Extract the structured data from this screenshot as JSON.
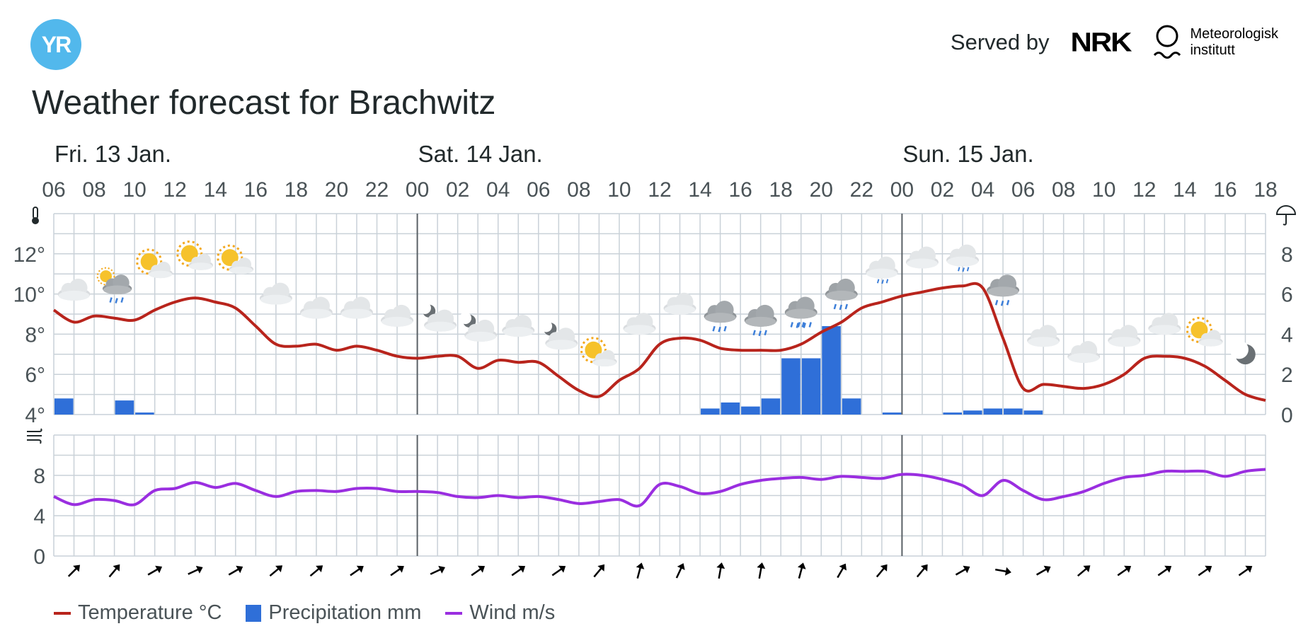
{
  "header": {
    "logo_text": "YR",
    "served_by": "Served by",
    "nrk_logo": "NRK",
    "met_logo_line1": "Meteorologisk",
    "met_logo_line2": "institutt"
  },
  "title": "Weather forecast for Brachwitz",
  "colors": {
    "temperature": "#b8241c",
    "precipitation": "#2f6fd8",
    "wind": "#9a2ee0",
    "grid": "#c9d1d8",
    "day_divider": "#5a6166",
    "text": "#21292b",
    "axis_text": "#4a5357",
    "logo": "#52b8ec"
  },
  "legend": {
    "temperature": "Temperature °C",
    "precipitation": "Precipitation mm",
    "wind": "Wind m/s"
  },
  "chart_data": {
    "type": "line",
    "days": [
      {
        "label": "Fri. 13 Jan.",
        "start_hour": 0
      },
      {
        "label": "Sat. 14 Jan.",
        "start_hour": 18
      },
      {
        "label": "Sun. 15 Jan.",
        "start_hour": 42
      }
    ],
    "hour_labels": [
      "06",
      "08",
      "10",
      "12",
      "14",
      "16",
      "18",
      "20",
      "22",
      "00",
      "02",
      "04",
      "06",
      "08",
      "10",
      "12",
      "14",
      "16",
      "18",
      "20",
      "22",
      "00",
      "02",
      "04",
      "06",
      "08",
      "10",
      "12",
      "14",
      "16",
      "18"
    ],
    "time_range_hours": [
      0,
      60
    ],
    "temperature_axis": {
      "ticks": [
        "12°",
        "10°",
        "8°",
        "6°",
        "4°"
      ],
      "min": 4,
      "max": 14,
      "unit": "°C",
      "icon": "thermometer-icon"
    },
    "precipitation_axis": {
      "ticks": [
        "8",
        "6",
        "4",
        "2",
        "0"
      ],
      "min": 0,
      "max": 10,
      "unit": "mm",
      "icon": "umbrella-icon"
    },
    "wind_axis": {
      "ticks": [
        "8",
        "4",
        "0"
      ],
      "min": 0,
      "max": 12,
      "unit": "m/s",
      "icon": "wind-icon"
    },
    "series": [
      {
        "name": "Temperature °C",
        "hours": [
          0,
          1,
          2,
          3,
          4,
          5,
          6,
          7,
          8,
          9,
          10,
          11,
          12,
          13,
          14,
          15,
          16,
          17,
          18,
          19,
          20,
          21,
          22,
          23,
          24,
          25,
          26,
          27,
          28,
          29,
          30,
          31,
          32,
          33,
          34,
          35,
          36,
          37,
          38,
          39,
          40,
          41,
          42,
          43,
          44,
          45,
          46,
          47,
          48,
          49,
          50,
          51,
          52,
          53,
          54,
          55,
          56,
          57,
          58,
          59,
          60
        ],
        "values": [
          9.2,
          8.6,
          8.9,
          8.8,
          8.7,
          9.2,
          9.6,
          9.8,
          9.6,
          9.3,
          8.4,
          7.5,
          7.4,
          7.5,
          7.2,
          7.4,
          7.2,
          6.9,
          6.8,
          6.9,
          6.9,
          6.3,
          6.7,
          6.6,
          6.6,
          5.9,
          5.2,
          4.9,
          5.7,
          6.3,
          7.5,
          7.8,
          7.7,
          7.3,
          7.2,
          7.2,
          7.2,
          7.5,
          8.1,
          8.6,
          9.3,
          9.6,
          9.9,
          10.1,
          10.3,
          10.4,
          10.3,
          7.8,
          5.3,
          5.5,
          5.4,
          5.3,
          5.5,
          6.0,
          6.8,
          6.9,
          6.8,
          6.4,
          5.7,
          5.0,
          4.7
        ]
      },
      {
        "name": "Precipitation mm",
        "hours": [
          0,
          3,
          4,
          32,
          33,
          34,
          35,
          36,
          37,
          38,
          39,
          41,
          44,
          45,
          46,
          47,
          48,
          49,
          50
        ],
        "values": [
          0.8,
          0.7,
          0.1,
          0.3,
          0.6,
          0.4,
          0.8,
          2.8,
          2.8,
          4.4,
          0.8,
          0.1,
          0.1,
          0.2,
          0.3,
          0.3,
          0.2,
          0.0,
          0.0
        ]
      },
      {
        "name": "Wind m/s",
        "hours": [
          0,
          1,
          2,
          3,
          4,
          5,
          6,
          7,
          8,
          9,
          10,
          11,
          12,
          13,
          14,
          15,
          16,
          17,
          18,
          19,
          20,
          21,
          22,
          23,
          24,
          25,
          26,
          27,
          28,
          29,
          30,
          31,
          32,
          33,
          34,
          35,
          36,
          37,
          38,
          39,
          40,
          41,
          42,
          43,
          44,
          45,
          46,
          47,
          48,
          49,
          50,
          51,
          52,
          53,
          54,
          55,
          56,
          57,
          58,
          59,
          60
        ],
        "values": [
          5.9,
          5.1,
          5.6,
          5.5,
          5.1,
          6.5,
          6.7,
          7.3,
          6.8,
          7.2,
          6.5,
          5.9,
          6.4,
          6.5,
          6.4,
          6.7,
          6.7,
          6.4,
          6.4,
          6.3,
          5.9,
          5.8,
          6.0,
          5.8,
          5.9,
          5.6,
          5.2,
          5.4,
          5.6,
          5.0,
          7.1,
          6.9,
          6.2,
          6.4,
          7.1,
          7.5,
          7.7,
          7.8,
          7.6,
          7.9,
          7.8,
          7.7,
          8.1,
          8.0,
          7.6,
          7.0,
          6.0,
          7.5,
          6.5,
          5.6,
          5.9,
          6.4,
          7.2,
          7.8,
          8.0,
          8.4,
          8.4,
          8.4,
          7.9,
          8.4,
          8.6
        ]
      }
    ],
    "weather_icons": [
      {
        "hour": 1,
        "icon": "cloudy-icon",
        "temp": 10.2
      },
      {
        "hour": 3,
        "icon": "partly-sunny-rain-icon",
        "temp": 10.6
      },
      {
        "hour": 5,
        "icon": "fair-day-icon",
        "temp": 11.4
      },
      {
        "hour": 7,
        "icon": "fair-day-icon",
        "temp": 11.8
      },
      {
        "hour": 9,
        "icon": "fair-day-icon",
        "temp": 11.6
      },
      {
        "hour": 11,
        "icon": "cloudy-icon",
        "temp": 10.0
      },
      {
        "hour": 13,
        "icon": "cloudy-icon",
        "temp": 9.3
      },
      {
        "hour": 15,
        "icon": "cloudy-icon",
        "temp": 9.3
      },
      {
        "hour": 17,
        "icon": "cloudy-icon",
        "temp": 8.9
      },
      {
        "hour": 19,
        "icon": "partly-cloudy-night-icon",
        "temp": 8.8
      },
      {
        "hour": 21,
        "icon": "partly-cloudy-night-icon",
        "temp": 8.3
      },
      {
        "hour": 23,
        "icon": "cloudy-icon",
        "temp": 8.4
      },
      {
        "hour": 25,
        "icon": "partly-cloudy-night-icon",
        "temp": 7.9
      },
      {
        "hour": 27,
        "icon": "fair-day-icon",
        "temp": 7.0
      },
      {
        "hour": 29,
        "icon": "cloudy-icon",
        "temp": 8.5
      },
      {
        "hour": 31,
        "icon": "cloudy-icon",
        "temp": 9.5
      },
      {
        "hour": 33,
        "icon": "rain-icon",
        "temp": 9.1
      },
      {
        "hour": 35,
        "icon": "rain-icon",
        "temp": 8.9
      },
      {
        "hour": 37,
        "icon": "heavy-rain-icon",
        "temp": 9.3
      },
      {
        "hour": 39,
        "icon": "rain-icon",
        "temp": 10.2
      },
      {
        "hour": 41,
        "icon": "light-rain-icon",
        "temp": 11.3
      },
      {
        "hour": 43,
        "icon": "cloudy-icon",
        "temp": 11.8
      },
      {
        "hour": 45,
        "icon": "light-rain-icon",
        "temp": 11.9
      },
      {
        "hour": 47,
        "icon": "rain-icon",
        "temp": 10.4
      },
      {
        "hour": 49,
        "icon": "cloudy-icon",
        "temp": 7.9
      },
      {
        "hour": 51,
        "icon": "cloudy-icon",
        "temp": 7.1
      },
      {
        "hour": 53,
        "icon": "cloudy-icon",
        "temp": 7.9
      },
      {
        "hour": 55,
        "icon": "cloudy-icon",
        "temp": 8.5
      },
      {
        "hour": 57,
        "icon": "fair-day-icon",
        "temp": 8.0
      },
      {
        "hour": 59,
        "icon": "night-moon-icon",
        "temp": 7.0
      }
    ],
    "wind_directions": [
      {
        "hour": 1,
        "arrow_deg": 45
      },
      {
        "hour": 3,
        "arrow_deg": 40
      },
      {
        "hour": 5,
        "arrow_deg": 60
      },
      {
        "hour": 7,
        "arrow_deg": 65
      },
      {
        "hour": 9,
        "arrow_deg": 60
      },
      {
        "hour": 11,
        "arrow_deg": 50
      },
      {
        "hour": 13,
        "arrow_deg": 50
      },
      {
        "hour": 15,
        "arrow_deg": 55
      },
      {
        "hour": 17,
        "arrow_deg": 55
      },
      {
        "hour": 19,
        "arrow_deg": 65
      },
      {
        "hour": 21,
        "arrow_deg": 55
      },
      {
        "hour": 23,
        "arrow_deg": 55
      },
      {
        "hour": 25,
        "arrow_deg": 55
      },
      {
        "hour": 27,
        "arrow_deg": 40
      },
      {
        "hour": 29,
        "arrow_deg": 15
      },
      {
        "hour": 31,
        "arrow_deg": 25
      },
      {
        "hour": 33,
        "arrow_deg": 10
      },
      {
        "hour": 35,
        "arrow_deg": 10
      },
      {
        "hour": 37,
        "arrow_deg": 15
      },
      {
        "hour": 39,
        "arrow_deg": 30
      },
      {
        "hour": 41,
        "arrow_deg": 40
      },
      {
        "hour": 43,
        "arrow_deg": 40
      },
      {
        "hour": 45,
        "arrow_deg": 60
      },
      {
        "hour": 47,
        "arrow_deg": 100
      },
      {
        "hour": 49,
        "arrow_deg": 60
      },
      {
        "hour": 51,
        "arrow_deg": 50
      },
      {
        "hour": 53,
        "arrow_deg": 55
      },
      {
        "hour": 55,
        "arrow_deg": 55
      },
      {
        "hour": 57,
        "arrow_deg": 55
      },
      {
        "hour": 59,
        "arrow_deg": 55
      }
    ]
  }
}
